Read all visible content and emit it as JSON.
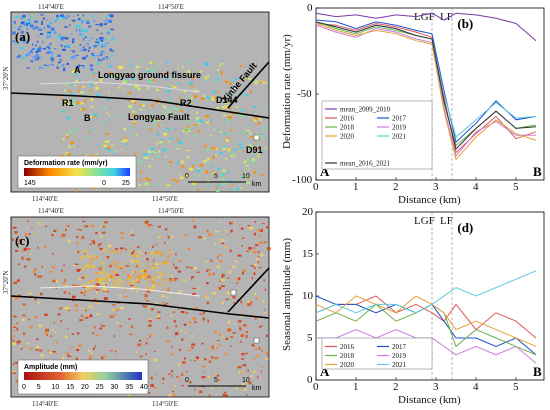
{
  "map_a": {
    "panel_label": "(a)",
    "top_ticks": [
      "114°40′E",
      "114°50′E"
    ],
    "bottom_ticks": [
      "114°40′E",
      "114°50′E"
    ],
    "lat_tick": "37°20′N",
    "labels": {
      "A": "A",
      "B": "B",
      "R1": "R1",
      "R2": "R2",
      "ground_fissure": "Longyao ground fissure",
      "fault": "Longyao Fault",
      "xinhe": "Xinhe Fault",
      "d144": "D144",
      "d91": "D91"
    },
    "colorbar": {
      "title": "Deformation rate   (mm/yr)",
      "ticks": [
        "145",
        "0",
        "25"
      ]
    },
    "scale": {
      "ticks": [
        "0",
        "5",
        "10"
      ],
      "unit": "km"
    }
  },
  "map_c": {
    "panel_label": "(c)",
    "top_ticks": [
      "114°40′E",
      "114°50′E"
    ],
    "bottom_ticks": [
      "114°40′E",
      "114°50′E"
    ],
    "lat_tick": "37°20′N",
    "colorbar": {
      "title": "Amplitude (mm)",
      "ticks": [
        "0",
        "5",
        "10",
        "15",
        "20",
        "25",
        "30",
        "35",
        "40"
      ]
    },
    "scale": {
      "ticks": [
        "0",
        "5",
        "10"
      ],
      "unit": "km"
    }
  },
  "colors": {
    "red": "#e15759",
    "blue": "#1f4fd1",
    "green": "#6ab04c",
    "orange": "#e8a23a",
    "purple": "#7b3aa8",
    "cyan": "#5bc8e0",
    "gray": "#8a8a8a"
  },
  "chart_data": [
    {
      "type": "line",
      "panel_label": "(b)",
      "xlabel": "Distance (km)",
      "ylabel": "Deformation rate (mm/yr)",
      "xlim": [
        0,
        5.7
      ],
      "ylim": [
        -100,
        0
      ],
      "xticks": [
        0,
        1,
        2,
        3,
        4,
        5
      ],
      "yticks": [
        0,
        -50,
        -100
      ],
      "markers": [
        {
          "x": 2.9,
          "label": "LGF"
        },
        {
          "x": 3.4,
          "label": "LF"
        }
      ],
      "end_labels": {
        "start": "A",
        "end": "B"
      },
      "legend_position": "bottom-left",
      "series": [
        {
          "name": "mean_2009_2010",
          "color": "#7b3aa8",
          "x": [
            0,
            0.5,
            1,
            1.5,
            2,
            2.5,
            2.9,
            3.2,
            3.5,
            4,
            4.5,
            5,
            5.5
          ],
          "y": [
            -3,
            -5,
            -4,
            -6,
            -4,
            -5,
            -3,
            -7,
            -3,
            -4,
            -6,
            -9,
            -19
          ]
        },
        {
          "name": "2016",
          "color": "#e15759",
          "x": [
            0,
            0.5,
            1,
            1.5,
            2,
            2.5,
            2.9,
            3.2,
            3.5,
            4,
            4.5,
            5,
            5.5
          ],
          "y": [
            -9,
            -10,
            -13,
            -9,
            -11,
            -14,
            -17,
            -52,
            -84,
            -73,
            -63,
            -76,
            -72
          ]
        },
        {
          "name": "2017",
          "color": "#1f4fd1",
          "x": [
            0,
            0.5,
            1,
            1.5,
            2,
            2.5,
            2.9,
            3.2,
            3.5,
            4,
            4.5,
            5,
            5.5
          ],
          "y": [
            -7,
            -8,
            -12,
            -8,
            -10,
            -13,
            -15,
            -48,
            -78,
            -67,
            -54,
            -65,
            -63
          ]
        },
        {
          "name": "2018",
          "color": "#6ab04c",
          "x": [
            0,
            0.5,
            1,
            1.5,
            2,
            2.5,
            2.9,
            3.2,
            3.5,
            4,
            4.5,
            5,
            5.5
          ],
          "y": [
            -8,
            -12,
            -15,
            -11,
            -13,
            -16,
            -18,
            -55,
            -80,
            -70,
            -60,
            -70,
            -68
          ]
        },
        {
          "name": "2019",
          "color": "#c77dd8",
          "x": [
            0,
            0.5,
            1,
            1.5,
            2,
            2.5,
            2.9,
            3.2,
            3.5,
            4,
            4.5,
            5,
            5.5
          ],
          "y": [
            -10,
            -14,
            -17,
            -12,
            -14,
            -18,
            -20,
            -58,
            -86,
            -72,
            -66,
            -74,
            -74
          ]
        },
        {
          "name": "2020",
          "color": "#e8a23a",
          "x": [
            0,
            0.5,
            1,
            1.5,
            2,
            2.5,
            2.9,
            3.2,
            3.5,
            4,
            4.5,
            5,
            5.5
          ],
          "y": [
            -9,
            -13,
            -16,
            -13,
            -15,
            -19,
            -21,
            -60,
            -88,
            -75,
            -65,
            -73,
            -77
          ]
        },
        {
          "name": "2021",
          "color": "#5bc8e0",
          "x": [
            0,
            0.5,
            1,
            1.5,
            2,
            2.5,
            2.9,
            3.2,
            3.5,
            4,
            4.5,
            5,
            5.5
          ],
          "y": [
            -8,
            -11,
            -14,
            -10,
            -12,
            -16,
            -18,
            -50,
            -75,
            -65,
            -55,
            -64,
            -63
          ]
        },
        {
          "name": "mean_2016_2021",
          "color": "#333333",
          "x": [
            0,
            0.5,
            1,
            1.5,
            2,
            2.5,
            2.9,
            3.2,
            3.5,
            4,
            4.5,
            5,
            5.5
          ],
          "y": [
            -8,
            -11,
            -14,
            -10,
            -12,
            -16,
            -18,
            -54,
            -82,
            -70,
            -60,
            -70,
            -69
          ]
        }
      ]
    },
    {
      "type": "line",
      "panel_label": "(d)",
      "xlabel": "Distance (km)",
      "ylabel": "Seasonal amplitude (mm)",
      "xlim": [
        0,
        5.7
      ],
      "ylim": [
        0,
        20
      ],
      "xticks": [
        0,
        1,
        2,
        3,
        4,
        5
      ],
      "yticks": [
        0,
        5,
        10,
        15,
        20
      ],
      "markers": [
        {
          "x": 2.9,
          "label": "LGF"
        },
        {
          "x": 3.4,
          "label": "LF"
        }
      ],
      "end_labels": {
        "start": "A",
        "end": "B"
      },
      "legend_position": "bottom-left",
      "series": [
        {
          "name": "2016",
          "color": "#e15759",
          "x": [
            0,
            0.5,
            1,
            1.5,
            2,
            2.5,
            2.9,
            3.2,
            3.5,
            4,
            4.5,
            5,
            5.5
          ],
          "y": [
            8,
            9,
            9,
            10,
            8,
            9,
            8,
            7,
            9,
            6,
            8,
            7,
            5
          ]
        },
        {
          "name": "2017",
          "color": "#1f4fd1",
          "x": [
            0,
            0.5,
            1,
            1.5,
            2,
            2.5,
            2.9,
            3.2,
            3.5,
            4,
            4.5,
            5,
            5.5
          ],
          "y": [
            10,
            9,
            9,
            8,
            9,
            8,
            9,
            7,
            5,
            5,
            4,
            5,
            3
          ]
        },
        {
          "name": "2018",
          "color": "#6ab04c",
          "x": [
            0,
            0.5,
            1,
            1.5,
            2,
            2.5,
            2.9,
            3.2,
            3.5,
            4,
            4.5,
            5,
            5.5
          ],
          "y": [
            7,
            8,
            7,
            9,
            7,
            8,
            9,
            8,
            4,
            6,
            5,
            4,
            3
          ]
        },
        {
          "name": "2019",
          "color": "#c77dd8",
          "x": [
            0,
            0.5,
            1,
            1.5,
            2,
            2.5,
            2.9,
            3.2,
            3.5,
            4,
            4.5,
            5,
            5.5
          ],
          "y": [
            5,
            5,
            6,
            5,
            6,
            5,
            5,
            4,
            3,
            4,
            3,
            4,
            2
          ]
        },
        {
          "name": "2020",
          "color": "#e8a23a",
          "x": [
            0,
            0.5,
            1,
            1.5,
            2,
            2.5,
            2.9,
            3.2,
            3.5,
            4,
            4.5,
            5,
            5.5
          ],
          "y": [
            9,
            8,
            10,
            9,
            8,
            10,
            9,
            8,
            6,
            7,
            6,
            5,
            4
          ]
        },
        {
          "name": "2021",
          "color": "#5bc8e0",
          "x": [
            0,
            0.5,
            1,
            1.5,
            2,
            2.5,
            2.9,
            3.2,
            3.5,
            4,
            4.5,
            5,
            5.5
          ],
          "y": [
            8,
            9,
            8,
            9,
            9,
            8,
            9,
            10,
            11,
            10,
            11,
            12,
            13
          ]
        }
      ]
    }
  ]
}
